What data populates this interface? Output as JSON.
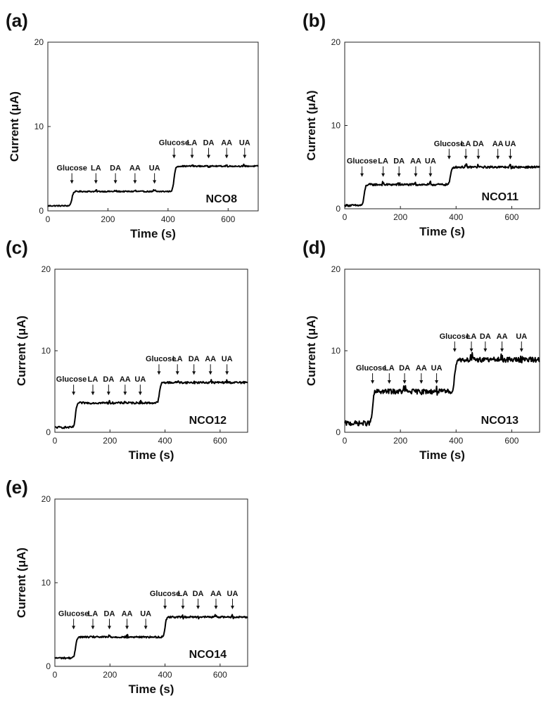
{
  "chart_data": [
    {
      "type": "line",
      "panel_label": "(a)",
      "sample": "NCO8",
      "xlabel": "Time (s)",
      "ylabel": "Current (μA)",
      "xlim": [
        0,
        700
      ],
      "ylim": [
        0,
        20
      ],
      "xticks": [
        "0",
        "200",
        "400",
        "600"
      ],
      "yticks": [
        "0",
        "10",
        "20"
      ],
      "baseline": 0.6,
      "step1_time": 80,
      "plateau1": 2.3,
      "step2_time": 420,
      "plateau2": 5.3,
      "noise": 0.07,
      "annotations": [
        {
          "label": "Glucose",
          "time": 80,
          "arrow_time": 80
        },
        {
          "label": "LA",
          "time": 160,
          "arrow_time": 160
        },
        {
          "label": "DA",
          "time": 225,
          "arrow_time": 225
        },
        {
          "label": "AA",
          "time": 290,
          "arrow_time": 290
        },
        {
          "label": "UA",
          "time": 355,
          "arrow_time": 355
        },
        {
          "label": "Glucose",
          "time": 420,
          "arrow_time": 420
        },
        {
          "label": "LA",
          "time": 480,
          "arrow_time": 480
        },
        {
          "label": "DA",
          "time": 535,
          "arrow_time": 535
        },
        {
          "label": "AA",
          "time": 595,
          "arrow_time": 595
        },
        {
          "label": "UA",
          "time": 655,
          "arrow_time": 655
        }
      ]
    },
    {
      "type": "line",
      "panel_label": "(b)",
      "sample": "NCO11",
      "xlabel": "Time (s)",
      "ylabel": "Current (μA)",
      "xlim": [
        0,
        700
      ],
      "ylim": [
        0,
        20
      ],
      "xticks": [
        "0",
        "200",
        "400",
        "600"
      ],
      "yticks": [
        "0",
        "10",
        "20"
      ],
      "baseline": 0.4,
      "step1_time": 70,
      "plateau1": 2.9,
      "step2_time": 380,
      "plateau2": 5.0,
      "noise": 0.12,
      "annotations": [
        {
          "label": "Glucose",
          "time": 62,
          "arrow_time": 62
        },
        {
          "label": "LA",
          "time": 138,
          "arrow_time": 138
        },
        {
          "label": "DA",
          "time": 195,
          "arrow_time": 195
        },
        {
          "label": "AA",
          "time": 255,
          "arrow_time": 255
        },
        {
          "label": "UA",
          "time": 308,
          "arrow_time": 308
        },
        {
          "label": "Glucose",
          "time": 375,
          "arrow_time": 375
        },
        {
          "label": "LA",
          "time": 435,
          "arrow_time": 435
        },
        {
          "label": "DA",
          "time": 480,
          "arrow_time": 480
        },
        {
          "label": "AA",
          "time": 550,
          "arrow_time": 550
        },
        {
          "label": "UA",
          "time": 595,
          "arrow_time": 595
        }
      ]
    },
    {
      "type": "line",
      "panel_label": "(c)",
      "sample": "NCO12",
      "xlabel": "Time (s)",
      "ylabel": "Current (μA)",
      "xlim": [
        0,
        700
      ],
      "ylim": [
        0,
        20
      ],
      "xticks": [
        "0",
        "200",
        "400",
        "600"
      ],
      "yticks": [
        "0",
        "10",
        "20"
      ],
      "baseline": 0.6,
      "step1_time": 75,
      "plateau1": 3.6,
      "step2_time": 380,
      "plateau2": 6.1,
      "noise": 0.12,
      "annotations": [
        {
          "label": "Glucose",
          "time": 60,
          "arrow_time": 68
        },
        {
          "label": "LA",
          "time": 138,
          "arrow_time": 138
        },
        {
          "label": "DA",
          "time": 195,
          "arrow_time": 195
        },
        {
          "label": "AA",
          "time": 255,
          "arrow_time": 255
        },
        {
          "label": "UA",
          "time": 310,
          "arrow_time": 310
        },
        {
          "label": "Glucose",
          "time": 385,
          "arrow_time": 378
        },
        {
          "label": "LA",
          "time": 445,
          "arrow_time": 445
        },
        {
          "label": "DA",
          "time": 505,
          "arrow_time": 505
        },
        {
          "label": "AA",
          "time": 565,
          "arrow_time": 565
        },
        {
          "label": "UA",
          "time": 625,
          "arrow_time": 625
        }
      ]
    },
    {
      "type": "line",
      "panel_label": "(d)",
      "sample": "NCO13",
      "xlabel": "Time (s)",
      "ylabel": "Current (μA)",
      "xlim": [
        0,
        700
      ],
      "ylim": [
        0,
        20
      ],
      "xticks": [
        "0",
        "200",
        "400",
        "600"
      ],
      "yticks": [
        "0",
        "10",
        "20"
      ],
      "baseline": 1.1,
      "step1_time": 100,
      "plateau1": 5.0,
      "step2_time": 395,
      "plateau2": 8.9,
      "noise": 0.3,
      "annotations": [
        {
          "label": "Glucose",
          "time": 95,
          "arrow_time": 100
        },
        {
          "label": "LA",
          "time": 160,
          "arrow_time": 160
        },
        {
          "label": "DA",
          "time": 215,
          "arrow_time": 215
        },
        {
          "label": "AA",
          "time": 275,
          "arrow_time": 275
        },
        {
          "label": "UA",
          "time": 330,
          "arrow_time": 330
        },
        {
          "label": "Glucose",
          "time": 395,
          "arrow_time": 395
        },
        {
          "label": "LA",
          "time": 455,
          "arrow_time": 455
        },
        {
          "label": "DA",
          "time": 505,
          "arrow_time": 505
        },
        {
          "label": "AA",
          "time": 565,
          "arrow_time": 565
        },
        {
          "label": "UA",
          "time": 635,
          "arrow_time": 635
        }
      ]
    },
    {
      "type": "line",
      "panel_label": "(e)",
      "sample": "NCO14",
      "xlabel": "Time (s)",
      "ylabel": "Current (μA)",
      "xlim": [
        0,
        700
      ],
      "ylim": [
        0,
        20
      ],
      "xticks": [
        "0",
        "200",
        "400",
        "600"
      ],
      "yticks": [
        "0",
        "10",
        "20"
      ],
      "baseline": 1.0,
      "step1_time": 75,
      "plateau1": 3.5,
      "step2_time": 400,
      "plateau2": 5.9,
      "noise": 0.1,
      "annotations": [
        {
          "label": "Glucose",
          "time": 68,
          "arrow_time": 68
        },
        {
          "label": "LA",
          "time": 138,
          "arrow_time": 138
        },
        {
          "label": "DA",
          "time": 198,
          "arrow_time": 198
        },
        {
          "label": "AA",
          "time": 262,
          "arrow_time": 262
        },
        {
          "label": "UA",
          "time": 330,
          "arrow_time": 330
        },
        {
          "label": "Glucose",
          "time": 400,
          "arrow_time": 400
        },
        {
          "label": "LA",
          "time": 465,
          "arrow_time": 465
        },
        {
          "label": "DA",
          "time": 520,
          "arrow_time": 520
        },
        {
          "label": "AA",
          "time": 585,
          "arrow_time": 585
        },
        {
          "label": "UA",
          "time": 645,
          "arrow_time": 645
        }
      ]
    }
  ]
}
